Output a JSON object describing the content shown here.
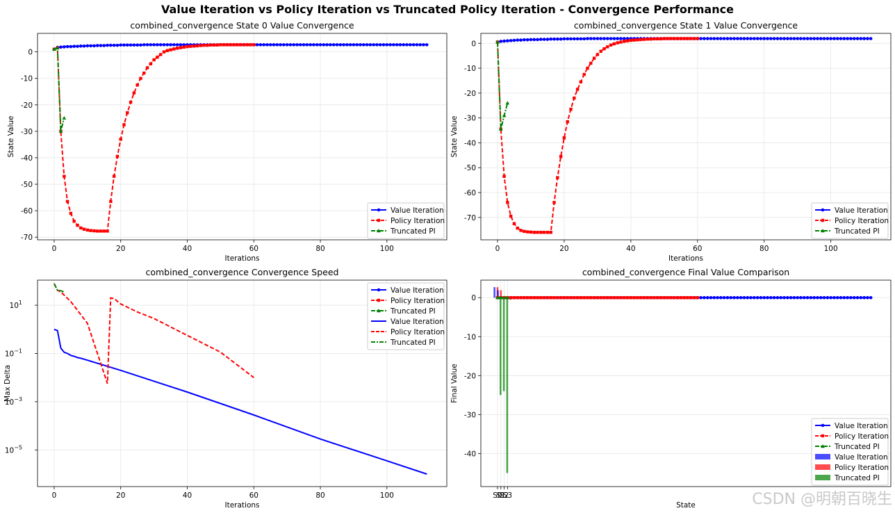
{
  "title": "Value Iteration vs Policy Iteration vs Truncated Policy Iteration - Convergence Performance",
  "watermark": "CSDN @明朝百晓生",
  "colors": {
    "vi": "#0000ff",
    "pi": "#ff0000",
    "tpi": "#008000"
  },
  "chart_data": [
    {
      "id": "state0",
      "type": "line",
      "title": "combined_convergence State 0 Value Convergence",
      "xlabel": "Iterations",
      "ylabel": "State Value",
      "xlim": [
        -5,
        118
      ],
      "ylim": [
        -71,
        7
      ],
      "xticks": [
        0,
        20,
        40,
        60,
        80,
        100
      ],
      "yticks": [
        0,
        -10,
        -20,
        -30,
        -40,
        -50,
        -60,
        -70
      ],
      "legend_position": "lower-right",
      "legend": [
        "Value Iteration",
        "Policy Iteration",
        "Truncated PI"
      ],
      "series": [
        {
          "name": "Value Iteration",
          "style": "vi",
          "x": [
            0,
            1,
            2,
            3,
            4,
            5,
            6,
            7,
            8,
            9,
            10,
            11,
            12,
            13,
            14,
            15,
            16,
            17,
            18,
            19,
            20,
            21,
            22,
            23,
            24,
            25,
            26,
            27,
            28,
            29,
            30,
            31,
            32,
            33,
            34,
            35,
            36,
            37,
            38,
            39,
            40,
            41,
            42,
            43,
            44,
            45,
            46,
            47,
            48,
            49,
            50,
            51,
            52,
            53,
            54,
            55,
            56,
            57,
            58,
            59,
            60,
            61,
            62,
            63,
            64,
            65,
            66,
            67,
            68,
            69,
            70,
            71,
            72,
            73,
            74,
            75,
            76,
            77,
            78,
            79,
            80,
            81,
            82,
            83,
            84,
            85,
            86,
            87,
            88,
            89,
            90,
            91,
            92,
            93,
            94,
            95,
            96,
            97,
            98,
            99,
            100,
            101,
            102,
            103,
            104,
            105,
            106,
            107,
            108,
            109,
            110,
            111,
            112
          ],
          "y": [
            1.0,
            1.7,
            1.8,
            1.9,
            2.0,
            2.0,
            2.1,
            2.1,
            2.2,
            2.2,
            2.3,
            2.3,
            2.3,
            2.4,
            2.4,
            2.4,
            2.5,
            2.5,
            2.5,
            2.5,
            2.6,
            2.6,
            2.6,
            2.6,
            2.6,
            2.6,
            2.6,
            2.7,
            2.7,
            2.7,
            2.7,
            2.7,
            2.7,
            2.7,
            2.7,
            2.7,
            2.7,
            2.7,
            2.7,
            2.7,
            2.7,
            2.7,
            2.7,
            2.7,
            2.7,
            2.7,
            2.7,
            2.7,
            2.7,
            2.7,
            2.7,
            2.7,
            2.7,
            2.7,
            2.7,
            2.7,
            2.7,
            2.7,
            2.7,
            2.7,
            2.7,
            2.7,
            2.7,
            2.7,
            2.7,
            2.7,
            2.7,
            2.7,
            2.7,
            2.7,
            2.7,
            2.7,
            2.7,
            2.7,
            2.7,
            2.7,
            2.7,
            2.7,
            2.7,
            2.7,
            2.7,
            2.7,
            2.7,
            2.7,
            2.7,
            2.7,
            2.7,
            2.7,
            2.7,
            2.7,
            2.7,
            2.7,
            2.7,
            2.7,
            2.7,
            2.7,
            2.7,
            2.7,
            2.7,
            2.7,
            2.7,
            2.7,
            2.7,
            2.7,
            2.7,
            2.7,
            2.7,
            2.7,
            2.7,
            2.7,
            2.7,
            2.7,
            2.7
          ]
        },
        {
          "name": "Policy Iteration",
          "style": "pi",
          "x": [
            0,
            1,
            2,
            3,
            4,
            5,
            6,
            7,
            8,
            9,
            10,
            11,
            12,
            13,
            14,
            15,
            16,
            17,
            18,
            19,
            20,
            21,
            22,
            23,
            24,
            25,
            26,
            27,
            28,
            29,
            30,
            31,
            32,
            33,
            34,
            35,
            36,
            37,
            38,
            39,
            40,
            41,
            42,
            43,
            44,
            45,
            46,
            47,
            48,
            49,
            50,
            51,
            52,
            53,
            54,
            55,
            56,
            57,
            58,
            59,
            60
          ],
          "y": [
            1.0,
            1.5,
            -30,
            -47,
            -56.5,
            -61,
            -64,
            -65.5,
            -66.5,
            -67,
            -67.3,
            -67.5,
            -67.6,
            -67.7,
            -67.7,
            -67.7,
            -67.7,
            -56.5,
            -47,
            -39.5,
            -33,
            -27.5,
            -23,
            -19,
            -15.5,
            -12.5,
            -10,
            -8,
            -6,
            -4.5,
            -3,
            -2,
            -1,
            0,
            0.5,
            0.8,
            1.1,
            1.4,
            1.6,
            1.8,
            2.0,
            2.1,
            2.2,
            2.3,
            2.4,
            2.5,
            2.5,
            2.6,
            2.6,
            2.6,
            2.7,
            2.7,
            2.7,
            2.7,
            2.7,
            2.7,
            2.7,
            2.7,
            2.7,
            2.7,
            2.7
          ]
        },
        {
          "name": "Truncated PI",
          "style": "tpi",
          "x": [
            0,
            1,
            2,
            3
          ],
          "y": [
            1.0,
            1.5,
            -30,
            -25
          ]
        }
      ]
    },
    {
      "id": "state1",
      "type": "line",
      "title": "combined_convergence State 1 Value Convergence",
      "xlabel": "Iterations",
      "ylabel": "State Value",
      "xlim": [
        -5,
        118
      ],
      "ylim": [
        -79,
        4
      ],
      "xticks": [
        0,
        20,
        40,
        60,
        80,
        100
      ],
      "yticks": [
        0,
        -10,
        -20,
        -30,
        -40,
        -50,
        -60,
        -70
      ],
      "legend_position": "lower-right",
      "legend": [
        "Value Iteration",
        "Policy Iteration",
        "Truncated PI"
      ],
      "series": [
        {
          "name": "Value Iteration",
          "style": "vi",
          "x": [
            0,
            1,
            2,
            3,
            4,
            5,
            6,
            7,
            8,
            9,
            10,
            11,
            12,
            13,
            14,
            15,
            16,
            17,
            18,
            19,
            20,
            21,
            22,
            23,
            24,
            25,
            26,
            27,
            28,
            29,
            30,
            31,
            32,
            33,
            34,
            35,
            36,
            37,
            38,
            39,
            40,
            41,
            42,
            43,
            44,
            45,
            46,
            47,
            48,
            49,
            50,
            51,
            52,
            53,
            54,
            55,
            56,
            57,
            58,
            59,
            60,
            61,
            62,
            63,
            64,
            65,
            66,
            67,
            68,
            69,
            70,
            71,
            72,
            73,
            74,
            75,
            76,
            77,
            78,
            79,
            80,
            81,
            82,
            83,
            84,
            85,
            86,
            87,
            88,
            89,
            90,
            91,
            92,
            93,
            94,
            95,
            96,
            97,
            98,
            99,
            100,
            101,
            102,
            103,
            104,
            105,
            106,
            107,
            108,
            109,
            110,
            111,
            112
          ],
          "y": [
            0.5,
            0.8,
            0.9,
            1.0,
            1.1,
            1.2,
            1.3,
            1.3,
            1.4,
            1.4,
            1.5,
            1.5,
            1.5,
            1.6,
            1.6,
            1.6,
            1.7,
            1.7,
            1.7,
            1.7,
            1.8,
            1.8,
            1.8,
            1.8,
            1.8,
            1.8,
            1.8,
            1.9,
            1.9,
            1.9,
            1.9,
            1.9,
            1.9,
            1.9,
            1.9,
            1.9,
            1.9,
            1.9,
            1.9,
            1.9,
            1.9,
            1.9,
            1.9,
            1.9,
            1.9,
            1.9,
            1.9,
            1.9,
            1.9,
            1.9,
            1.9,
            1.9,
            1.9,
            1.9,
            1.9,
            1.9,
            1.9,
            1.9,
            1.9,
            1.9,
            1.9,
            1.9,
            1.9,
            1.9,
            1.9,
            1.9,
            1.9,
            1.9,
            1.9,
            1.9,
            1.9,
            1.9,
            1.9,
            1.9,
            1.9,
            1.9,
            1.9,
            1.9,
            1.9,
            1.9,
            1.9,
            1.9,
            1.9,
            1.9,
            1.9,
            1.9,
            1.9,
            1.9,
            1.9,
            1.9,
            1.9,
            1.9,
            1.9,
            1.9,
            1.9,
            1.9,
            1.9,
            1.9,
            1.9,
            1.9,
            1.9,
            1.9,
            1.9,
            1.9,
            1.9,
            1.9,
            1.9,
            1.9,
            1.9,
            1.9,
            1.9,
            1.9,
            1.9
          ]
        },
        {
          "name": "Policy Iteration",
          "style": "pi",
          "x": [
            0,
            1,
            2,
            3,
            4,
            5,
            6,
            7,
            8,
            9,
            10,
            11,
            12,
            13,
            14,
            15,
            16,
            17,
            18,
            19,
            20,
            21,
            22,
            23,
            24,
            25,
            26,
            27,
            28,
            29,
            30,
            31,
            32,
            33,
            34,
            35,
            36,
            37,
            38,
            39,
            40,
            41,
            42,
            43,
            44,
            45,
            46,
            47,
            48,
            49,
            50,
            51,
            52,
            53,
            54,
            55,
            56,
            57,
            58,
            59,
            60
          ],
          "y": [
            0.5,
            -34.5,
            -53.5,
            -64,
            -69.5,
            -72.5,
            -74.3,
            -75.2,
            -75.6,
            -75.8,
            -75.9,
            -76,
            -76,
            -76,
            -76,
            -76,
            -76,
            -64,
            -54,
            -45.5,
            -38,
            -31.5,
            -26.5,
            -22,
            -18.5,
            -15.5,
            -12.5,
            -10,
            -8,
            -6,
            -4.5,
            -3.2,
            -2.2,
            -1.4,
            -0.7,
            -0.2,
            0.2,
            0.5,
            0.8,
            1.0,
            1.2,
            1.3,
            1.4,
            1.5,
            1.6,
            1.7,
            1.7,
            1.8,
            1.8,
            1.8,
            1.9,
            1.9,
            1.9,
            1.9,
            1.9,
            1.9,
            1.9,
            1.9,
            1.9,
            1.9,
            1.9
          ]
        },
        {
          "name": "Truncated PI",
          "style": "tpi",
          "x": [
            0,
            1,
            2,
            3
          ],
          "y": [
            0.5,
            -34.5,
            -29,
            -24
          ]
        }
      ]
    },
    {
      "id": "speed",
      "type": "line",
      "scale": "log",
      "title": "combined_convergence Convergence Speed",
      "xlabel": "Iterations",
      "ylabel": "Max Delta",
      "xlim": [
        -5,
        118
      ],
      "ylim_log10": [
        -6.52,
        2.04
      ],
      "xticks": [
        0,
        20,
        40,
        60,
        80,
        100
      ],
      "yticks_exp": [
        1,
        -1,
        -3,
        -5
      ],
      "yticks_label": [
        "10",
        "10",
        "10",
        "10"
      ],
      "yticks_sup": [
        "1",
        "−1",
        "−3",
        "−5"
      ],
      "legend_position": "top-right",
      "legend": [
        "Value Iteration",
        "Policy Iteration",
        "Truncated PI",
        "Value Iteration",
        "Policy Iteration",
        "Truncated PI"
      ],
      "series": [
        {
          "name": "Value Iteration",
          "style": "vi",
          "x": [
            0,
            1,
            2,
            3,
            4,
            5,
            6,
            7,
            8,
            10,
            20,
            40,
            60,
            80,
            100,
            112
          ],
          "log10y": [
            0.0,
            -0.05,
            -0.78,
            -0.95,
            -1.0,
            -1.08,
            -1.12,
            -1.17,
            -1.2,
            -1.28,
            -1.7,
            -2.6,
            -3.55,
            -4.55,
            -5.45,
            -6.0
          ]
        },
        {
          "name": "Policy Iteration",
          "style": "pi",
          "x": [
            0,
            1,
            2,
            3,
            5,
            10,
            16,
            17,
            18,
            20,
            25,
            30,
            40,
            50,
            60
          ],
          "log10y": [
            1.9,
            1.62,
            1.55,
            1.42,
            1.15,
            0.25,
            -2.25,
            1.3,
            1.28,
            1.05,
            0.72,
            0.45,
            -0.25,
            -0.95,
            -2.0
          ]
        },
        {
          "name": "Truncated PI",
          "style": "tpi",
          "x": [
            0,
            1,
            2,
            3
          ],
          "log10y": [
            1.9,
            1.62,
            1.6,
            1.55
          ]
        }
      ]
    },
    {
      "id": "final",
      "type": "line",
      "title": "combined_convergence Final Value Comparison",
      "xlabel": "State",
      "ylabel": "Final Value",
      "xlim": [
        -5,
        118
      ],
      "ylim": [
        -48.5,
        4.5
      ],
      "yticks": [
        0,
        -10,
        -20,
        -30,
        -40
      ],
      "xtick_labels": [
        "S0",
        "S1",
        "S2",
        "S3"
      ],
      "legend_position": "lower-right",
      "legend": [
        "Value Iteration",
        "Policy Iteration",
        "Truncated PI",
        "Value Iteration",
        "Policy Iteration",
        "Truncated PI"
      ],
      "bars": [
        {
          "series": "Value Iteration",
          "state": 0,
          "value": 2.7
        },
        {
          "series": "Policy Iteration",
          "state": 0,
          "value": 2.7
        },
        {
          "series": "Truncated PI",
          "state": 0,
          "value": -25
        },
        {
          "series": "Value Iteration",
          "state": 1,
          "value": 1.9
        },
        {
          "series": "Policy Iteration",
          "state": 1,
          "value": 1.9
        },
        {
          "series": "Truncated PI",
          "state": 1,
          "value": -24
        },
        {
          "series": "Value Iteration",
          "state": 2,
          "value": 0.2
        },
        {
          "series": "Policy Iteration",
          "state": 2,
          "value": 0.2
        },
        {
          "series": "Truncated PI",
          "state": 2,
          "value": -45
        },
        {
          "series": "Value Iteration",
          "state": 3,
          "value": 0.1
        },
        {
          "series": "Policy Iteration",
          "state": 3,
          "value": 0.1
        },
        {
          "series": "Truncated PI",
          "state": 3,
          "value": -0.5
        }
      ],
      "series": [
        {
          "name": "Value Iteration",
          "style": "vi",
          "x_start": 0,
          "x_end": 112,
          "y": 0
        },
        {
          "name": "Policy Iteration",
          "style": "pi",
          "x_start": 0,
          "x_end": 60,
          "y": 0
        },
        {
          "name": "Truncated PI",
          "style": "tpi",
          "x_start": 0,
          "x_end": 3,
          "y": 0
        }
      ]
    }
  ]
}
